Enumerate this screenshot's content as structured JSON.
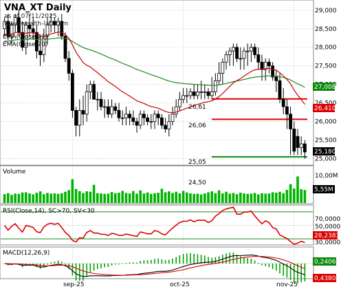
{
  "header": {
    "title": "VNA_XT Daily",
    "date": "as of 07/11/2025",
    "site": "www.wealth-lab.com",
    "ind1": "EMA(Close,21)",
    "ind2": "EMA(Close,70)"
  },
  "colors": {
    "up": "#ffffff",
    "down": "#000000",
    "ema21": "#cc0000",
    "ema70": "#1a8c1a",
    "resistance": "#e00000",
    "support": "#0b8a0b",
    "volume": "#00b400",
    "rsi": "#dd0000",
    "macd": "#000000",
    "signal": "#dd0000",
    "hist": "#00a000",
    "grid": "#c8c8c8"
  },
  "price_panel": {
    "ylim": [
      24.9,
      29.2
    ],
    "ticks": [
      "29,000",
      "28,500",
      "28,000",
      "27,500",
      "27,000",
      "26,500",
      "26,000",
      "25,500",
      "25,000"
    ],
    "tick_values": [
      29.0,
      28.5,
      28.0,
      27.5,
      27.0,
      26.5,
      26.0,
      25.5,
      25.0
    ],
    "levels": [
      {
        "label": "26,61",
        "value": 26.61
      },
      {
        "label": "26,06",
        "value": 26.06
      },
      {
        "label": "25,05",
        "value": 25.05
      }
    ],
    "badges": {
      "ema70": "27,008",
      "ema21": "26,410",
      "close": "25,180"
    }
  },
  "volume_panel": {
    "title": "Volume",
    "marker": "24,50",
    "ticks": [
      "10,00M"
    ],
    "badge": "5,55M",
    "ylim": [
      0,
      11.5
    ]
  },
  "rsi_panel": {
    "title": "RSI(Close,14), SC>70, SV<30",
    "ticks": [
      "70,0000",
      "50,0000",
      "30,0000"
    ],
    "badge": "28,2383",
    "ylim": [
      22,
      78
    ]
  },
  "macd_panel": {
    "title": "MACD(12,26,9)",
    "badges": {
      "signal": "0,2406",
      "macd": "0,4380"
    }
  },
  "x_axis": {
    "labels": [
      "sep-25",
      "oct-25",
      "nov-25"
    ],
    "label_bars": [
      19,
      50,
      81
    ]
  },
  "chart_data": [
    {
      "type": "candlestick",
      "title": "VNA_XT Daily",
      "open": [
        28.5,
        28.7,
        28.3,
        28.6,
        28.8,
        28.4,
        28.0,
        28.6,
        28.5,
        28.4,
        27.9,
        27.8,
        28.3,
        28.6,
        28.7,
        28.6,
        28.7,
        28.3,
        27.7,
        27.3,
        26.3,
        25.9,
        26.3,
        26.2,
        26.8,
        27.0,
        26.6,
        26.6,
        26.4,
        26.4,
        26.2,
        26.4,
        26.3,
        26.1,
        26.1,
        26.2,
        26.1,
        26.0,
        25.9,
        26.2,
        26.1,
        26.0,
        26.0,
        26.2,
        26.1,
        25.9,
        25.8,
        26.0,
        26.2,
        26.4,
        26.6,
        26.7,
        26.7,
        26.8,
        26.7,
        26.8,
        26.8,
        26.8,
        26.7,
        26.8,
        27.1,
        27.3,
        27.6,
        27.8,
        27.9,
        28.0,
        27.7,
        27.7,
        27.9,
        27.9,
        28.0,
        27.8,
        27.6,
        27.4,
        27.6,
        27.5,
        27.2,
        27.1,
        26.6,
        26.4,
        26.2,
        25.8,
        25.6,
        25.3,
        25.4
      ],
      "high": [
        28.8,
        28.9,
        28.7,
        28.9,
        29.0,
        28.7,
        28.7,
        28.9,
        28.8,
        28.6,
        28.3,
        28.5,
        28.8,
        28.9,
        28.8,
        28.8,
        28.9,
        28.4,
        27.9,
        27.4,
        26.4,
        26.6,
        26.7,
        27.0,
        27.1,
        27.1,
        26.8,
        26.8,
        26.6,
        26.6,
        26.6,
        26.5,
        26.5,
        26.3,
        26.4,
        26.3,
        26.3,
        26.1,
        26.3,
        26.3,
        26.2,
        26.2,
        26.3,
        26.3,
        26.2,
        26.1,
        26.2,
        26.4,
        26.6,
        26.8,
        26.9,
        26.9,
        26.9,
        27.0,
        27.0,
        27.1,
        27.0,
        26.9,
        27.2,
        27.3,
        27.6,
        27.7,
        27.9,
        28.0,
        28.1,
        28.1,
        28.0,
        28.0,
        28.1,
        28.1,
        28.1,
        28.0,
        27.8,
        27.7,
        27.7,
        27.6,
        27.4,
        27.3,
        26.9,
        26.6,
        26.4,
        26.0,
        25.8,
        25.6,
        25.5
      ],
      "low": [
        28.3,
        28.2,
        28.1,
        28.4,
        28.3,
        27.9,
        27.8,
        28.3,
        28.2,
        27.7,
        27.5,
        27.6,
        28.1,
        28.4,
        28.4,
        28.3,
        28.2,
        27.6,
        27.1,
        26.1,
        25.6,
        25.6,
        25.9,
        26.0,
        26.6,
        26.6,
        26.3,
        26.3,
        26.1,
        26.1,
        26.1,
        26.2,
        26.0,
        25.9,
        25.9,
        25.9,
        25.9,
        25.7,
        25.8,
        25.9,
        25.9,
        25.8,
        25.8,
        25.9,
        25.8,
        25.7,
        25.6,
        25.9,
        26.1,
        26.3,
        26.5,
        26.5,
        26.6,
        26.6,
        26.6,
        26.6,
        26.6,
        26.6,
        26.6,
        26.7,
        27.0,
        27.0,
        27.4,
        27.5,
        27.5,
        27.6,
        27.4,
        27.4,
        27.5,
        27.6,
        27.7,
        27.4,
        27.1,
        27.1,
        27.3,
        27.1,
        26.8,
        26.5,
        26.2,
        25.8,
        25.1,
        25.1,
        25.1,
        25.1,
        25.0
      ],
      "close": [
        28.7,
        28.3,
        28.6,
        28.8,
        28.4,
        28.0,
        28.6,
        28.5,
        28.4,
        27.9,
        27.8,
        28.3,
        28.6,
        28.7,
        28.6,
        28.7,
        28.3,
        27.7,
        27.3,
        26.3,
        25.9,
        26.3,
        26.2,
        26.8,
        27.0,
        26.6,
        26.6,
        26.4,
        26.4,
        26.2,
        26.4,
        26.3,
        26.1,
        26.1,
        26.2,
        26.1,
        26.0,
        25.9,
        26.2,
        26.1,
        26.0,
        26.0,
        26.2,
        26.1,
        25.9,
        25.8,
        26.0,
        26.2,
        26.4,
        26.6,
        26.7,
        26.7,
        26.8,
        26.7,
        26.8,
        26.8,
        26.8,
        26.7,
        26.8,
        27.1,
        27.3,
        27.6,
        27.8,
        27.9,
        28.0,
        27.7,
        27.7,
        27.9,
        27.9,
        28.0,
        27.8,
        27.6,
        27.4,
        27.6,
        27.5,
        27.2,
        27.1,
        26.6,
        26.4,
        26.2,
        25.8,
        25.2,
        25.3,
        25.4,
        25.18
      ],
      "ema21_first": 28.3,
      "ema70_first": 28.15,
      "volume": [
        3.8,
        4.2,
        3.5,
        4.0,
        3.9,
        4.5,
        4.6,
        4.1,
        3.7,
        4.4,
        5.0,
        3.8,
        4.3,
        4.0,
        4.1,
        3.9,
        4.2,
        4.8,
        5.5,
        10.2,
        6.0,
        5.1,
        4.3,
        5.0,
        4.8,
        7.8,
        4.2,
        4.1,
        3.9,
        4.0,
        4.7,
        4.2,
        4.4,
        5.2,
        4.3,
        4.1,
        5.1,
        4.0,
        5.4,
        4.1,
        4.5,
        3.9,
        4.2,
        4.4,
        6.1,
        4.6,
        5.0,
        4.3,
        4.8,
        4.1,
        5.2,
        4.5,
        4.1,
        3.9,
        4.0,
        3.7,
        4.1,
        4.6,
        5.0,
        4.2,
        5.4,
        4.1,
        4.8,
        4.0,
        4.3,
        3.8,
        4.4,
        4.1,
        3.9,
        4.0,
        4.3,
        3.7,
        4.2,
        4.0,
        4.1,
        4.6,
        4.4,
        4.8,
        4.2,
        5.6,
        8.1,
        6.2,
        11.4,
        5.9,
        5.55
      ],
      "ylim": [
        24.9,
        29.2
      ]
    }
  ]
}
